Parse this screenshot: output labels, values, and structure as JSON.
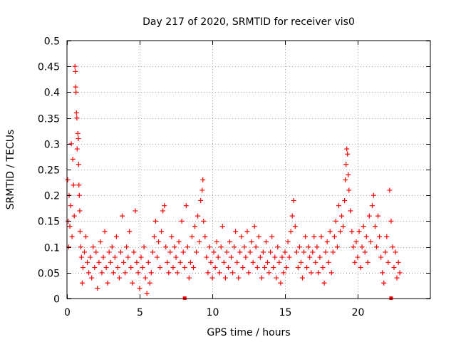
{
  "chart_data": {
    "type": "scatter",
    "title": "Day 217 of 2020, SRMTID for receiver vis0",
    "xlabel": "GPS time / hours",
    "ylabel": "SRMTID / TECUs",
    "xlim": [
      0,
      25
    ],
    "ylim": [
      0,
      0.5
    ],
    "x_ticks": [
      0,
      5,
      10,
      15,
      20
    ],
    "y_ticks": [
      0,
      0.05,
      0.1,
      0.15,
      0.2,
      0.25,
      0.3,
      0.35,
      0.4,
      0.45,
      0.5
    ],
    "x_tick_labels": [
      "0",
      "5",
      "10",
      "15",
      "20"
    ],
    "y_tick_labels": [
      "0",
      "0.05",
      "0.1",
      "0.15",
      "0.2",
      "0.25",
      "0.3",
      "0.35",
      "0.4",
      "0.45",
      "0.5"
    ],
    "grid": true,
    "marker": "+",
    "color": "#ff0000",
    "series": [
      {
        "name": "SRMTID",
        "points": [
          [
            0.05,
            0.23
          ],
          [
            0.08,
            0.15
          ],
          [
            0.12,
            0.1
          ],
          [
            0.15,
            0.2
          ],
          [
            0.2,
            0.14
          ],
          [
            0.25,
            0.18
          ],
          [
            0.3,
            0.3
          ],
          [
            0.35,
            0.12
          ],
          [
            0.4,
            0.27
          ],
          [
            0.45,
            0.22
          ],
          [
            0.5,
            0.16
          ],
          [
            0.55,
            0.45
          ],
          [
            0.58,
            0.44
          ],
          [
            0.6,
            0.41
          ],
          [
            0.62,
            0.4
          ],
          [
            0.65,
            0.36
          ],
          [
            0.68,
            0.35
          ],
          [
            0.7,
            0.29
          ],
          [
            0.75,
            0.32
          ],
          [
            0.78,
            0.31
          ],
          [
            0.8,
            0.26
          ],
          [
            0.82,
            0.22
          ],
          [
            0.85,
            0.2
          ],
          [
            0.88,
            0.17
          ],
          [
            0.9,
            0.13
          ],
          [
            0.95,
            0.1
          ],
          [
            1.0,
            0.08
          ],
          [
            1.05,
            0.03
          ],
          [
            1.1,
            0.06
          ],
          [
            1.2,
            0.09
          ],
          [
            1.3,
            0.12
          ],
          [
            1.4,
            0.07
          ],
          [
            1.5,
            0.05
          ],
          [
            1.6,
            0.08
          ],
          [
            1.7,
            0.04
          ],
          [
            1.8,
            0.1
          ],
          [
            1.9,
            0.06
          ],
          [
            2.0,
            0.09
          ],
          [
            2.1,
            0.02
          ],
          [
            2.2,
            0.07
          ],
          [
            2.3,
            0.11
          ],
          [
            2.4,
            0.05
          ],
          [
            2.5,
            0.08
          ],
          [
            2.6,
            0.13
          ],
          [
            2.7,
            0.06
          ],
          [
            2.8,
            0.03
          ],
          [
            2.9,
            0.09
          ],
          [
            3.0,
            0.07
          ],
          [
            3.1,
            0.1
          ],
          [
            3.2,
            0.05
          ],
          [
            3.3,
            0.08
          ],
          [
            3.4,
            0.12
          ],
          [
            3.5,
            0.06
          ],
          [
            3.6,
            0.04
          ],
          [
            3.7,
            0.09
          ],
          [
            3.8,
            0.16
          ],
          [
            3.9,
            0.07
          ],
          [
            4.0,
            0.05
          ],
          [
            4.1,
            0.1
          ],
          [
            4.2,
            0.08
          ],
          [
            4.3,
            0.13
          ],
          [
            4.4,
            0.06
          ],
          [
            4.5,
            0.03
          ],
          [
            4.6,
            0.09
          ],
          [
            4.7,
            0.17
          ],
          [
            4.8,
            0.07
          ],
          [
            4.9,
            0.05
          ],
          [
            5.0,
            0.02
          ],
          [
            5.1,
            0.08
          ],
          [
            5.2,
            0.06
          ],
          [
            5.3,
            0.1
          ],
          [
            5.4,
            0.04
          ],
          [
            5.5,
            0.01
          ],
          [
            5.6,
            0.07
          ],
          [
            5.7,
            0.03
          ],
          [
            5.8,
            0.05
          ],
          [
            5.9,
            0.09
          ],
          [
            6.0,
            0.12
          ],
          [
            6.1,
            0.15
          ],
          [
            6.2,
            0.08
          ],
          [
            6.3,
            0.11
          ],
          [
            6.4,
            0.06
          ],
          [
            6.5,
            0.13
          ],
          [
            6.6,
            0.17
          ],
          [
            6.7,
            0.18
          ],
          [
            6.8,
            0.1
          ],
          [
            6.9,
            0.07
          ],
          [
            7.0,
            0.05
          ],
          [
            7.1,
            0.09
          ],
          [
            7.2,
            0.12
          ],
          [
            7.3,
            0.06
          ],
          [
            7.4,
            0.1
          ],
          [
            7.5,
            0.08
          ],
          [
            7.6,
            0.05
          ],
          [
            7.7,
            0.11
          ],
          [
            7.8,
            0.07
          ],
          [
            7.9,
            0.15
          ],
          [
            8.0,
            0.09
          ],
          [
            8.1,
            0.06
          ],
          [
            8.2,
            0.18
          ],
          [
            8.3,
            0.1
          ],
          [
            8.4,
            0.04
          ],
          [
            8.5,
            0.07
          ],
          [
            8.6,
            0.12
          ],
          [
            8.7,
            0.06
          ],
          [
            8.8,
            0.14
          ],
          [
            8.9,
            0.09
          ],
          [
            9.0,
            0.16
          ],
          [
            9.1,
            0.11
          ],
          [
            9.2,
            0.19
          ],
          [
            9.3,
            0.21
          ],
          [
            9.35,
            0.23
          ],
          [
            9.4,
            0.15
          ],
          [
            9.5,
            0.12
          ],
          [
            9.6,
            0.08
          ],
          [
            9.7,
            0.05
          ],
          [
            9.8,
            0.1
          ],
          [
            9.9,
            0.07
          ],
          [
            10.0,
            0.04
          ],
          [
            10.1,
            0.09
          ],
          [
            10.2,
            0.06
          ],
          [
            10.3,
            0.11
          ],
          [
            10.4,
            0.08
          ],
          [
            10.5,
            0.05
          ],
          [
            10.6,
            0.1
          ],
          [
            10.7,
            0.14
          ],
          [
            10.8,
            0.07
          ],
          [
            10.9,
            0.04
          ],
          [
            11.0,
            0.09
          ],
          [
            11.1,
            0.06
          ],
          [
            11.2,
            0.11
          ],
          [
            11.3,
            0.08
          ],
          [
            11.4,
            0.05
          ],
          [
            11.5,
            0.1
          ],
          [
            11.6,
            0.13
          ],
          [
            11.7,
            0.07
          ],
          [
            11.8,
            0.04
          ],
          [
            11.9,
            0.09
          ],
          [
            12.0,
            0.12
          ],
          [
            12.1,
            0.06
          ],
          [
            12.2,
            0.1
          ],
          [
            12.3,
            0.08
          ],
          [
            12.4,
            0.13
          ],
          [
            12.5,
            0.05
          ],
          [
            12.6,
            0.09
          ],
          [
            12.7,
            0.11
          ],
          [
            12.8,
            0.07
          ],
          [
            12.9,
            0.14
          ],
          [
            13.0,
            0.1
          ],
          [
            13.1,
            0.06
          ],
          [
            13.2,
            0.12
          ],
          [
            13.3,
            0.08
          ],
          [
            13.4,
            0.04
          ],
          [
            13.5,
            0.09
          ],
          [
            13.6,
            0.06
          ],
          [
            13.7,
            0.11
          ],
          [
            13.8,
            0.07
          ],
          [
            13.9,
            0.05
          ],
          [
            14.0,
            0.09
          ],
          [
            14.1,
            0.12
          ],
          [
            14.2,
            0.06
          ],
          [
            14.3,
            0.08
          ],
          [
            14.4,
            0.04
          ],
          [
            14.5,
            0.1
          ],
          [
            14.6,
            0.07
          ],
          [
            14.7,
            0.03
          ],
          [
            14.8,
            0.08
          ],
          [
            14.9,
            0.05
          ],
          [
            15.0,
            0.09
          ],
          [
            15.1,
            0.06
          ],
          [
            15.2,
            0.11
          ],
          [
            15.3,
            0.08
          ],
          [
            15.4,
            0.13
          ],
          [
            15.5,
            0.16
          ],
          [
            15.6,
            0.19
          ],
          [
            15.7,
            0.14
          ],
          [
            15.8,
            0.09
          ],
          [
            15.9,
            0.06
          ],
          [
            16.0,
            0.1
          ],
          [
            16.1,
            0.07
          ],
          [
            16.2,
            0.04
          ],
          [
            16.3,
            0.09
          ],
          [
            16.4,
            0.12
          ],
          [
            16.5,
            0.06
          ],
          [
            16.6,
            0.1
          ],
          [
            16.7,
            0.08
          ],
          [
            16.8,
            0.05
          ],
          [
            16.9,
            0.09
          ],
          [
            17.0,
            0.12
          ],
          [
            17.1,
            0.07
          ],
          [
            17.2,
            0.1
          ],
          [
            17.3,
            0.05
          ],
          [
            17.4,
            0.08
          ],
          [
            17.5,
            0.12
          ],
          [
            17.6,
            0.06
          ],
          [
            17.7,
            0.03
          ],
          [
            17.8,
            0.09
          ],
          [
            17.9,
            0.11
          ],
          [
            18.0,
            0.07
          ],
          [
            18.1,
            0.13
          ],
          [
            18.2,
            0.05
          ],
          [
            18.3,
            0.09
          ],
          [
            18.4,
            0.12
          ],
          [
            18.5,
            0.15
          ],
          [
            18.6,
            0.1
          ],
          [
            18.7,
            0.18
          ],
          [
            18.8,
            0.13
          ],
          [
            18.9,
            0.16
          ],
          [
            19.0,
            0.14
          ],
          [
            19.1,
            0.19
          ],
          [
            19.15,
            0.23
          ],
          [
            19.2,
            0.26
          ],
          [
            19.25,
            0.29
          ],
          [
            19.3,
            0.28
          ],
          [
            19.35,
            0.24
          ],
          [
            19.4,
            0.21
          ],
          [
            19.5,
            0.17
          ],
          [
            19.6,
            0.13
          ],
          [
            19.7,
            0.1
          ],
          [
            19.8,
            0.07
          ],
          [
            19.9,
            0.11
          ],
          [
            20.0,
            0.08
          ],
          [
            20.1,
            0.13
          ],
          [
            20.2,
            0.06
          ],
          [
            20.3,
            0.1
          ],
          [
            20.4,
            0.14
          ],
          [
            20.5,
            0.09
          ],
          [
            20.6,
            0.12
          ],
          [
            20.7,
            0.07
          ],
          [
            20.8,
            0.16
          ],
          [
            20.9,
            0.11
          ],
          [
            21.0,
            0.18
          ],
          [
            21.1,
            0.2
          ],
          [
            21.2,
            0.14
          ],
          [
            21.3,
            0.1
          ],
          [
            21.4,
            0.16
          ],
          [
            21.5,
            0.12
          ],
          [
            21.6,
            0.08
          ],
          [
            21.7,
            0.05
          ],
          [
            21.8,
            0.03
          ],
          [
            21.9,
            0.09
          ],
          [
            22.0,
            0.12
          ],
          [
            22.1,
            0.07
          ],
          [
            22.2,
            0.21
          ],
          [
            22.3,
            0.15
          ],
          [
            22.4,
            0.1
          ],
          [
            22.5,
            0.06
          ],
          [
            22.6,
            0.09
          ],
          [
            22.7,
            0.04
          ],
          [
            22.8,
            0.07
          ],
          [
            22.9,
            0.05
          ]
        ]
      }
    ],
    "baseline_markers_x": [
      8.1,
      22.3
    ]
  }
}
